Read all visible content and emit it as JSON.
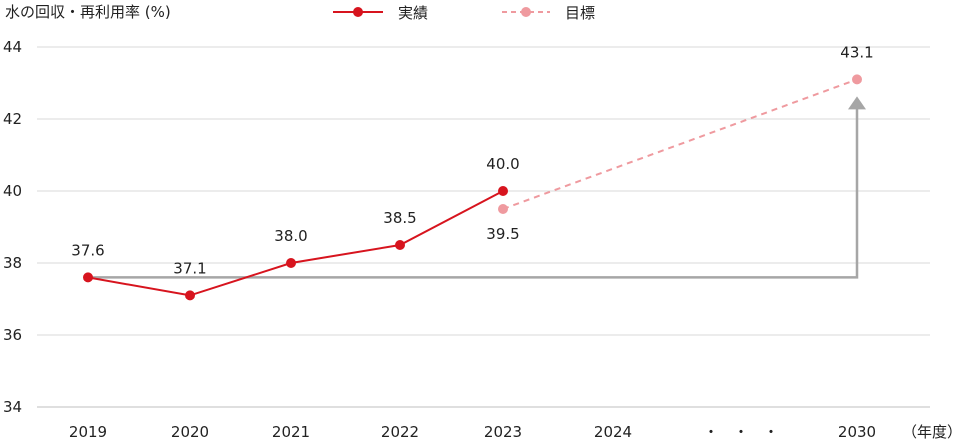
{
  "chart_data": {
    "type": "line",
    "title": "",
    "ylabel": "水の回収・再利用率 (%)",
    "xlabel": "",
    "x_unit": "（年度）",
    "ylim": [
      34,
      44
    ],
    "yticks": [
      34,
      36,
      38,
      40,
      42,
      44
    ],
    "categories": [
      "2019",
      "2020",
      "2021",
      "2022",
      "2023",
      "2024",
      "・　・　・",
      "2030"
    ],
    "grid": true,
    "legend_position": "top-center",
    "series": [
      {
        "name": "実績",
        "style": "solid",
        "color": "#d7141e",
        "x": [
          "2019",
          "2020",
          "2021",
          "2022",
          "2023"
        ],
        "values": [
          37.6,
          37.1,
          38.0,
          38.5,
          40.0
        ],
        "labels": [
          "37.6",
          "37.1",
          "38.0",
          "38.5",
          "40.0"
        ]
      },
      {
        "name": "目標",
        "style": "dashed",
        "color": "#ef9a9f",
        "x": [
          "2023",
          "2030"
        ],
        "values": [
          39.5,
          43.1
        ],
        "labels": [
          "39.5",
          "43.1"
        ]
      }
    ],
    "arrow": {
      "from_x": "2019",
      "from_value": 37.6,
      "to_x": "2030",
      "to_value": 43.1,
      "color": "#a6a6a6"
    }
  }
}
